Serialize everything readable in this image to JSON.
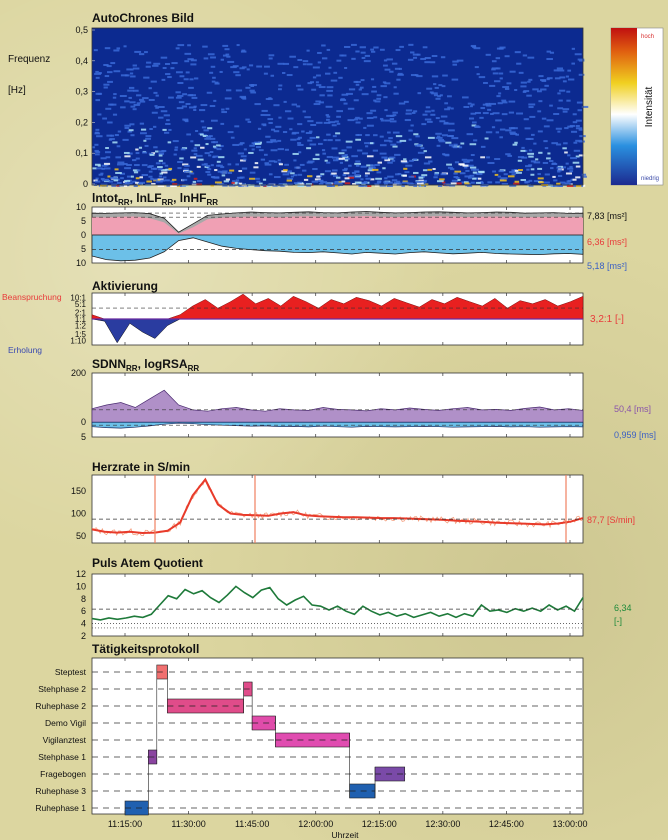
{
  "x_axis": {
    "label": "Uhrzeit",
    "ticks": [
      "11:15:00",
      "11:30:00",
      "11:45:00",
      "12:00:00",
      "12:15:00",
      "12:30:00",
      "12:45:00",
      "13:00:00"
    ]
  },
  "colors": {
    "background": "#dcd6a0",
    "lf": "#f0a0b4",
    "hf": "#6cc0e8",
    "aktiv_red": "#e82020",
    "aktiv_blue": "#2a3ca0",
    "sdnn": "#b090c8",
    "hr_line": "#e83a2a",
    "paq_line": "#1e7a3a",
    "spectro_bg": "#0c2a90"
  },
  "chart_data": [
    {
      "id": "spectrogram",
      "type": "heatmap",
      "title": "AutoChrones Bild",
      "ylabel_line1": "Frequenz",
      "ylabel_line2": "[Hz]",
      "yticks": [
        "0,5",
        "0,4",
        "0,3",
        "0,2",
        "0,1",
        "0"
      ],
      "ylim": [
        0,
        0.5
      ],
      "colorbar": {
        "label": "Intensität",
        "high": "hoch",
        "low": "niedrig"
      }
    },
    {
      "id": "power",
      "type": "area",
      "title_parts": [
        "lntot",
        "RR",
        ", lnLF",
        "RR",
        ", lnHF",
        "RR"
      ],
      "yticks": [
        "10",
        "5",
        "0",
        "5",
        "10"
      ],
      "ylim": [
        -10,
        10
      ],
      "series": [
        {
          "name": "lntot",
          "values": [
            7.8,
            7.7,
            7.9,
            8.0,
            7.6,
            6.0,
            1.0,
            4.0,
            7.0,
            7.5,
            7.9,
            8.2,
            8.0,
            7.9,
            8.1,
            8.3,
            8.0,
            7.9,
            8.2,
            8.4,
            8.1,
            7.9,
            8.0,
            8.2,
            8.3,
            8.1,
            7.9,
            8.0,
            8.2,
            8.1,
            7.8,
            7.9,
            8.0,
            7.7,
            7.8
          ]
        },
        {
          "name": "lnLF",
          "values": [
            6.4,
            6.2,
            6.5,
            6.6,
            6.0,
            4.5,
            0.5,
            2.8,
            5.6,
            6.2,
            6.4,
            6.6,
            6.5,
            6.3,
            6.6,
            6.7,
            6.5,
            6.4,
            6.6,
            6.8,
            6.5,
            6.4,
            6.5,
            6.6,
            6.7,
            6.6,
            6.4,
            6.5,
            6.6,
            6.5,
            6.3,
            6.4,
            6.5,
            6.3,
            6.4
          ]
        },
        {
          "name": "lnHF",
          "values": [
            -7.5,
            -8.8,
            -9.2,
            -9.0,
            -8.2,
            -6.0,
            -2.0,
            -1.0,
            -2.5,
            -4.0,
            -4.8,
            -5.2,
            -5.6,
            -5.8,
            -6.2,
            -6.3,
            -6.0,
            -6.4,
            -6.8,
            -6.2,
            -6.5,
            -6.8,
            -6.3,
            -6.0,
            -6.4,
            -6.7,
            -6.5,
            -6.2,
            -6.6,
            -6.8,
            -6.9,
            -7.0,
            -6.7,
            -6.6,
            -6.9
          ]
        }
      ],
      "value_labels": [
        {
          "text": "7,83 [ms²]",
          "color": "#111111"
        },
        {
          "text": "6,36 [ms²]",
          "color": "#e83a3a"
        },
        {
          "text": "5,18 [ms²]",
          "color": "#3a5fc4"
        }
      ],
      "ref_values": [
        7.83,
        6.36,
        -5.18
      ]
    },
    {
      "id": "aktivierung",
      "type": "area",
      "title": "Aktivierung",
      "side_labels": {
        "top": "Beanspruchung",
        "bottom": "Erholung"
      },
      "yticks": [
        "10:1",
        "5:1",
        "2:1",
        "1:1",
        "1:2",
        "1:5",
        "1:10"
      ],
      "tick_values": [
        1.0,
        0.699,
        0.301,
        0,
        -0.301,
        -0.699,
        -1.0
      ],
      "ylim": [
        -1.2,
        1.2
      ],
      "values": [
        0.2,
        -0.1,
        -1.1,
        -0.2,
        -0.6,
        -0.9,
        -0.3,
        0.2,
        0.6,
        0.9,
        0.5,
        0.8,
        1.15,
        0.7,
        0.95,
        0.6,
        1.05,
        0.8,
        0.5,
        0.9,
        0.7,
        1.0,
        0.85,
        0.6,
        0.95,
        0.75,
        0.55,
        0.9,
        0.7,
        1.0,
        0.8,
        0.6,
        0.95,
        0.5,
        0.85,
        0.7,
        0.9,
        0.6,
        0.8,
        1.05
      ],
      "ref_value": 0.505,
      "value_label": {
        "text": "3,2:1 [-]",
        "color": "#e83a3a"
      }
    },
    {
      "id": "sdnn",
      "type": "area",
      "title_parts": [
        "SDNN",
        "RR",
        ", logRSA",
        "RR"
      ],
      "yticks": [
        "200",
        "0",
        "5"
      ],
      "ylim": [
        -60,
        200
      ],
      "series": [
        {
          "name": "SDNN",
          "values": [
            55,
            70,
            80,
            60,
            95,
            130,
            70,
            50,
            45,
            55,
            60,
            50,
            45,
            55,
            50,
            48,
            60,
            52,
            50,
            46,
            55,
            50,
            58,
            52,
            48,
            55,
            60,
            50,
            52,
            48,
            56,
            62,
            50,
            55,
            48
          ]
        },
        {
          "name": "logRSA",
          "values": [
            -18,
            -22,
            -24,
            -20,
            -15,
            -8,
            -4,
            -6,
            -10,
            -12,
            -14,
            -16,
            -15,
            -18,
            -17,
            -19,
            -16,
            -18,
            -20,
            -17,
            -18,
            -19,
            -18,
            -17,
            -18,
            -20,
            -19,
            -18,
            -17,
            -19,
            -18,
            -20,
            -19,
            -18,
            -19
          ]
        }
      ],
      "ref_values": [
        50.4,
        -12
      ],
      "value_labels": [
        {
          "text": "50,4 [ms]",
          "color": "#8a55aa"
        },
        {
          "text": "0,959 [ms]",
          "color": "#3a5fc4"
        }
      ]
    },
    {
      "id": "herzrate",
      "type": "line",
      "title": "Herzrate in S/min",
      "yticks": [
        "150",
        "100",
        "50"
      ],
      "ylim": [
        35,
        185
      ],
      "values": [
        65,
        60,
        58,
        60,
        57,
        58,
        62,
        80,
        140,
        175,
        120,
        100,
        97,
        96,
        95,
        100,
        103,
        96,
        94,
        93,
        92,
        92,
        91,
        90,
        90,
        89,
        88,
        87,
        86,
        84,
        83,
        82,
        80,
        79,
        78,
        77,
        76,
        78,
        82,
        90
      ],
      "ref_value": 87.7,
      "value_label": {
        "text": "87,7 [S/min]",
        "color": "#e83a3a"
      }
    },
    {
      "id": "paq",
      "type": "line",
      "title": "Puls Atem Quotient",
      "yticks": [
        "12",
        "10",
        "8",
        "6",
        "4",
        "2"
      ],
      "ylim": [
        2,
        12
      ],
      "values": [
        4.8,
        4.6,
        4.9,
        4.7,
        4.9,
        5.2,
        5.0,
        5.5,
        7.0,
        8.5,
        8.0,
        9.5,
        8.8,
        9.3,
        8.2,
        7.4,
        8.6,
        10.0,
        9.0,
        8.2,
        9.4,
        9.8,
        8.0,
        7.0,
        7.8,
        8.4,
        7.0,
        6.8,
        6.2,
        6.8,
        6.0,
        5.5,
        6.8,
        6.0,
        5.4,
        5.8,
        5.2,
        5.6,
        5.0,
        5.4,
        5.8,
        5.2,
        5.6,
        5.0,
        5.6,
        5.2,
        7.0,
        6.0,
        6.2,
        5.8,
        6.4,
        6.0,
        6.5,
        6.0,
        7.0,
        6.2,
        6.8,
        6.0,
        8.2
      ],
      "ref_values": [
        6.34,
        4.0,
        3.3
      ],
      "value_labels": [
        {
          "text": "6,34",
          "color": "#1e8a3a"
        },
        {
          "text": "[-]",
          "color": "#1e8a3a"
        }
      ]
    },
    {
      "id": "protokoll",
      "type": "bar",
      "title": "Tätigkeitsprotokoll",
      "categories": [
        "Steptest",
        "Stehphase 2",
        "Ruhephase 2",
        "Demo Vigil",
        "Vigilanztest",
        "Stehphase 1",
        "Fragebogen",
        "Ruhephase 3",
        "Ruhephase 1"
      ],
      "tasks": [
        {
          "category": "Ruhephase 1",
          "start": "11:15:00",
          "end": "11:20:30",
          "color": "#2060b0"
        },
        {
          "category": "Stehphase 1",
          "start": "11:20:30",
          "end": "11:22:30",
          "color": "#8a44a0"
        },
        {
          "category": "Steptest",
          "start": "11:22:30",
          "end": "11:25:00",
          "color": "#f07070"
        },
        {
          "category": "Ruhephase 2",
          "start": "11:25:00",
          "end": "11:43:00",
          "color": "#e04c8a"
        },
        {
          "category": "Stehphase 2",
          "start": "11:43:00",
          "end": "11:45:00",
          "color": "#e04c8a"
        },
        {
          "category": "Demo Vigil",
          "start": "11:45:00",
          "end": "11:50:30",
          "color": "#e04caa"
        },
        {
          "category": "Vigilanztest",
          "start": "11:50:30",
          "end": "12:08:00",
          "color": "#e04cb0"
        },
        {
          "category": "Ruhephase 3",
          "start": "12:08:00",
          "end": "12:14:00",
          "color": "#2060b0"
        },
        {
          "category": "Fragebogen",
          "start": "12:14:00",
          "end": "12:21:00",
          "color": "#7a4aa8"
        }
      ]
    }
  ]
}
